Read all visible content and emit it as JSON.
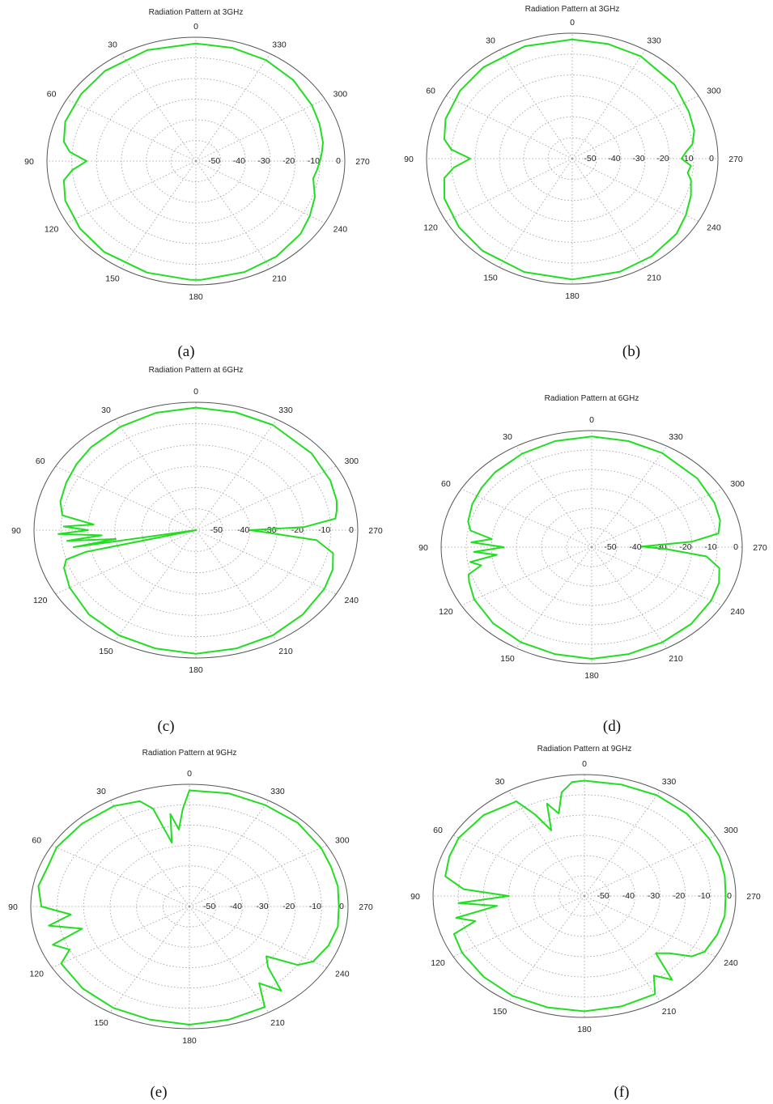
{
  "colors": {
    "trace": "#22dd22",
    "grid": "#9a9a9a",
    "outer": "#555555",
    "text": "#222222"
  },
  "chart_data": [
    {
      "type": "polar-line",
      "caption": "(a)",
      "title": "Radiation Pattern at 3GHz",
      "angle_ticks": [
        0,
        30,
        60,
        90,
        120,
        150,
        180,
        210,
        240,
        270,
        300,
        330
      ],
      "angle_direction": "counterclockwise from top",
      "radial_ticks": [
        -50,
        -40,
        -30,
        -20,
        -10,
        0
      ],
      "rlim": [
        -60,
        0
      ],
      "grid": true,
      "series": [
        {
          "angles": [
            0,
            20,
            40,
            55,
            70,
            80,
            85,
            90,
            95,
            100,
            110,
            125,
            140,
            160,
            178,
            182,
            200,
            215,
            230,
            240,
            250,
            260,
            265,
            270,
            275,
            280,
            290,
            300,
            315,
            330,
            345,
            360
          ],
          "values": [
            -3,
            -2.8,
            -3,
            -3.5,
            -4,
            -6,
            -9,
            -16,
            -10,
            -6,
            -4,
            -3,
            -2.5,
            -2.5,
            -2.4,
            -2.4,
            -2.8,
            -3.5,
            -5,
            -7,
            -9,
            -12,
            -11,
            -10,
            -9,
            -8,
            -7,
            -6,
            -4.5,
            -3.5,
            -3.2,
            -3
          ]
        }
      ]
    },
    {
      "type": "polar-line",
      "caption": "(b)",
      "title": "Radiation Pattern at 3GHz",
      "angle_ticks": [
        0,
        30,
        60,
        90,
        120,
        150,
        180,
        210,
        240,
        270,
        300,
        330
      ],
      "angle_direction": "counterclockwise from top",
      "radial_ticks": [
        -50,
        -40,
        -30,
        -20,
        -10,
        0
      ],
      "rlim": [
        -60,
        0
      ],
      "grid": true,
      "series": [
        {
          "angles": [
            0,
            20,
            40,
            55,
            70,
            80,
            85,
            90,
            95,
            100,
            110,
            125,
            140,
            160,
            180,
            200,
            215,
            230,
            240,
            250,
            258,
            262,
            266,
            270,
            274,
            278,
            285,
            295,
            310,
            330,
            345,
            360
          ],
          "values": [
            -3,
            -2.8,
            -3,
            -3.5,
            -4.5,
            -6.5,
            -10,
            -18,
            -11,
            -6.5,
            -4,
            -3,
            -2.5,
            -2.3,
            -2.2,
            -2.5,
            -3,
            -4,
            -6,
            -8,
            -10,
            -12,
            -11,
            -15,
            -13,
            -10,
            -8,
            -7,
            -5,
            -3.5,
            -3.2,
            -3
          ]
        }
      ]
    },
    {
      "type": "polar-line",
      "caption": "(c)",
      "title": "Radiation Pattern at 6GHz",
      "angle_ticks": [
        0,
        30,
        60,
        90,
        120,
        150,
        180,
        210,
        240,
        270,
        300,
        330
      ],
      "angle_direction": "counterclockwise from top",
      "radial_ticks": [
        -50,
        -40,
        -30,
        -20,
        -10,
        0
      ],
      "rlim": [
        -60,
        0
      ],
      "grid": true,
      "series": [
        {
          "angles": [
            0,
            15,
            30,
            45,
            55,
            65,
            75,
            82,
            86,
            88,
            90,
            92,
            94,
            96,
            98,
            100,
            102,
            104,
            106,
            110,
            120,
            135,
            150,
            165,
            180,
            195,
            210,
            225,
            240,
            250,
            258,
            264,
            268,
            270,
            272,
            276,
            280,
            285,
            295,
            310,
            330,
            345,
            360
          ],
          "values": [
            -2.5,
            -3,
            -4,
            -5,
            -6,
            -7,
            -8,
            -10,
            -22,
            -11,
            -20,
            -9,
            -25,
            -12,
            -30,
            -14,
            -60,
            -18,
            -10,
            -8,
            -6,
            -4,
            -3,
            -2.5,
            -2,
            -2.5,
            -3,
            -4,
            -5,
            -6,
            -8,
            -15,
            -35,
            -40,
            -20,
            -8,
            -7,
            -6,
            -5,
            -4,
            -3,
            -2.8,
            -2.5
          ]
        }
      ]
    },
    {
      "type": "polar-line",
      "caption": "(d)",
      "title": "Radiation Pattern at 6GHz",
      "angle_ticks": [
        0,
        30,
        60,
        90,
        120,
        150,
        180,
        210,
        240,
        270,
        300,
        330
      ],
      "angle_direction": "counterclockwise from top",
      "radial_ticks": [
        -50,
        -40,
        -30,
        -20,
        -10,
        0
      ],
      "rlim": [
        -60,
        0
      ],
      "grid": true,
      "series": [
        {
          "angles": [
            0,
            15,
            30,
            45,
            55,
            65,
            75,
            80,
            84,
            87,
            90,
            93,
            96,
            99,
            102,
            106,
            110,
            120,
            135,
            150,
            165,
            180,
            195,
            210,
            225,
            240,
            250,
            258,
            264,
            268,
            271,
            274,
            278,
            285,
            295,
            310,
            330,
            345,
            360
          ],
          "values": [
            -3,
            -3.5,
            -4.5,
            -5.5,
            -6.5,
            -7.5,
            -9,
            -11,
            -20,
            -12,
            -25,
            -13,
            -22,
            -11,
            -15,
            -9,
            -8,
            -6,
            -4.5,
            -3.5,
            -3,
            -2.5,
            -3,
            -3.5,
            -4,
            -5,
            -6,
            -8,
            -14,
            -30,
            -40,
            -20,
            -9,
            -7,
            -6,
            -5,
            -4,
            -3.5,
            -3
          ]
        }
      ]
    },
    {
      "type": "polar-line",
      "caption": "(e)",
      "title": "Radiation Pattern at 9GHz",
      "angle_ticks": [
        0,
        30,
        60,
        90,
        120,
        150,
        180,
        210,
        240,
        270,
        300,
        330
      ],
      "angle_direction": "counterclockwise from top",
      "radial_ticks": [
        -50,
        -40,
        -30,
        -20,
        -10,
        0
      ],
      "rlim": [
        -60,
        0
      ],
      "grid": true,
      "series": [
        {
          "angles": [
            0,
            3,
            6,
            9,
            12,
            16,
            20,
            30,
            45,
            60,
            70,
            80,
            90,
            95,
            100,
            105,
            110,
            115,
            120,
            135,
            150,
            165,
            180,
            195,
            210,
            215,
            220,
            225,
            230,
            235,
            240,
            250,
            260,
            270,
            280,
            290,
            300,
            315,
            330,
            345,
            360
          ],
          "values": [
            -3,
            -12,
            -22,
            -14,
            -28,
            -10,
            -5,
            -3,
            -2.5,
            -2,
            -3,
            -2,
            -4,
            -15,
            -6,
            -18,
            -5,
            -10,
            -4,
            -3,
            -2.5,
            -2.5,
            -2,
            -2.5,
            -3,
            -14,
            -6,
            -18,
            -22,
            -10,
            -6,
            -4,
            -3,
            -3.5,
            -3,
            -3,
            -2.5,
            -2,
            -2.5,
            -2.5,
            -3
          ]
        }
      ]
    },
    {
      "type": "polar-line",
      "caption": "(f)",
      "title": "Radiation Pattern at 9GHz",
      "angle_ticks": [
        0,
        30,
        60,
        90,
        120,
        150,
        180,
        210,
        240,
        270,
        300,
        330
      ],
      "angle_direction": "counterclockwise from top",
      "radial_ticks": [
        -50,
        -40,
        -30,
        -20,
        -10,
        0
      ],
      "rlim": [
        -60,
        0
      ],
      "grid": true,
      "series": [
        {
          "angles": [
            0,
            5,
            10,
            14,
            18,
            22,
            26,
            30,
            45,
            60,
            70,
            80,
            86,
            90,
            94,
            98,
            102,
            106,
            110,
            120,
            135,
            150,
            165,
            180,
            195,
            210,
            215,
            220,
            225,
            230,
            235,
            240,
            250,
            260,
            270,
            280,
            290,
            300,
            315,
            330,
            345,
            360
          ],
          "values": [
            -3,
            -3.5,
            -8,
            -18,
            -12,
            -25,
            -15,
            -6,
            -3.5,
            -2.5,
            -3,
            -4,
            -12,
            -30,
            -10,
            -25,
            -8,
            -15,
            -5,
            -4,
            -3.5,
            -3,
            -3,
            -3,
            -3.5,
            -4,
            -12,
            -6,
            -20,
            -16,
            -8,
            -5,
            -4,
            -3.5,
            -4,
            -3.5,
            -3,
            -3,
            -2.5,
            -2.5,
            -3,
            -3
          ]
        }
      ]
    }
  ]
}
